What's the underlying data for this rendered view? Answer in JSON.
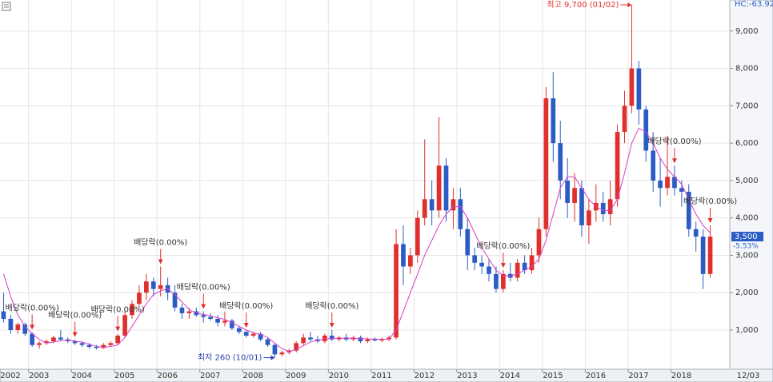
{
  "chart_data": {
    "type": "candlestick",
    "categories": [
      "2002",
      null,
      null,
      null,
      "2003",
      null,
      null,
      null,
      null,
      null,
      "2004",
      null,
      null,
      null,
      null,
      null,
      "2005",
      null,
      null,
      null,
      null,
      null,
      "2006",
      null,
      null,
      null,
      null,
      null,
      "2007",
      null,
      null,
      null,
      null,
      null,
      "2008",
      null,
      null,
      null,
      null,
      null,
      "2009",
      null,
      null,
      null,
      null,
      null,
      "2010",
      null,
      null,
      null,
      null,
      null,
      "2011",
      null,
      null,
      null,
      null,
      null,
      "2012",
      null,
      null,
      null,
      null,
      null,
      "2013",
      null,
      null,
      null,
      null,
      null,
      "2014",
      null,
      null,
      null,
      null,
      null,
      "2015",
      null,
      null,
      null,
      null,
      null,
      "2016",
      null,
      null,
      null,
      null,
      null,
      "2017",
      null,
      null,
      null,
      null,
      null,
      "2018",
      null,
      null,
      null,
      null,
      null
    ],
    "open": [
      1500,
      1300,
      1000,
      1150,
      900,
      600,
      650,
      700,
      800,
      750,
      700,
      650,
      600,
      550,
      520,
      600,
      650,
      850,
      1400,
      1700,
      2000,
      2300,
      2100,
      2200,
      2000,
      1600,
      1450,
      1500,
      1400,
      1350,
      1300,
      1200,
      1250,
      1050,
      950,
      850,
      900,
      750,
      600,
      350,
      400,
      450,
      650,
      800,
      750,
      700,
      850,
      750,
      800,
      750,
      800,
      700,
      750,
      720,
      750,
      800,
      3300,
      2700,
      3000,
      4000,
      4500,
      4200,
      5400,
      4200,
      4500,
      3700,
      3000,
      2800,
      2700,
      2500,
      2100,
      2500,
      2400,
      2800,
      2600,
      3000,
      3700,
      7200,
      6000,
      5000,
      4400,
      4800,
      3800,
      4200,
      4400,
      4100,
      4500,
      6300,
      7000,
      8000,
      6900,
      5800,
      5000,
      4800,
      5100,
      4800,
      4700,
      3700,
      3500,
      2500
    ],
    "high": [
      2000,
      1400,
      1200,
      1200,
      950,
      700,
      750,
      850,
      1000,
      800,
      750,
      700,
      650,
      600,
      650,
      700,
      900,
      1500,
      1800,
      2200,
      2500,
      2400,
      2700,
      2400,
      2200,
      1700,
      1600,
      1600,
      1500,
      1450,
      1400,
      1500,
      1300,
      1100,
      1000,
      950,
      950,
      800,
      650,
      450,
      500,
      700,
      900,
      950,
      850,
      900,
      1000,
      850,
      900,
      850,
      850,
      800,
      800,
      800,
      850,
      3700,
      3800,
      3200,
      4200,
      6100,
      5000,
      6700,
      5600,
      4800,
      4800,
      4000,
      3200,
      3000,
      2900,
      2700,
      2600,
      2800,
      2900,
      3000,
      3200,
      4000,
      7500,
      7900,
      6600,
      5600,
      5200,
      5000,
      4500,
      4900,
      4700,
      5000,
      6500,
      7400,
      9700,
      8200,
      7000,
      6300,
      5600,
      6200,
      5400,
      5000,
      4900,
      3900,
      3700,
      3800
    ],
    "low": [
      1200,
      900,
      900,
      850,
      550,
      500,
      600,
      650,
      700,
      650,
      600,
      550,
      500,
      480,
      500,
      550,
      600,
      800,
      1300,
      1600,
      1800,
      1900,
      1900,
      1800,
      1500,
      1300,
      1300,
      1350,
      1200,
      1250,
      1100,
      1100,
      1000,
      900,
      800,
      800,
      700,
      550,
      260,
      300,
      350,
      400,
      600,
      700,
      650,
      650,
      700,
      700,
      700,
      700,
      650,
      650,
      700,
      680,
      700,
      750,
      2200,
      2500,
      2800,
      3800,
      3800,
      4000,
      3900,
      3700,
      3500,
      2600,
      2600,
      2500,
      2300,
      2000,
      2000,
      2300,
      2300,
      2500,
      2500,
      2800,
      3500,
      5500,
      4500,
      4000,
      3900,
      3500,
      3300,
      3900,
      3900,
      3800,
      4300,
      6000,
      6800,
      6500,
      5500,
      4700,
      4300,
      4600,
      4600,
      4300,
      3500,
      3100,
      2100,
      2400
    ],
    "close": [
      1300,
      1000,
      1150,
      900,
      600,
      650,
      700,
      800,
      750,
      700,
      650,
      600,
      550,
      520,
      600,
      650,
      850,
      1400,
      1700,
      2000,
      2300,
      2100,
      2200,
      2000,
      1600,
      1450,
      1500,
      1400,
      1350,
      1300,
      1200,
      1250,
      1050,
      950,
      850,
      900,
      750,
      600,
      350,
      400,
      450,
      650,
      800,
      750,
      700,
      850,
      750,
      800,
      750,
      800,
      700,
      750,
      720,
      750,
      800,
      3300,
      2700,
      3000,
      4000,
      4500,
      4200,
      5400,
      4200,
      4500,
      3700,
      3000,
      2800,
      2700,
      2500,
      2100,
      2500,
      2400,
      2800,
      2600,
      3000,
      3700,
      7200,
      6000,
      5000,
      4400,
      4800,
      3800,
      4200,
      4400,
      4100,
      4500,
      6300,
      7000,
      8000,
      6900,
      5800,
      5000,
      4800,
      5100,
      4800,
      4700,
      3700,
      3500,
      2500,
      3500
    ],
    "up_color": "#e0302e",
    "down_color": "#2b5cc6",
    "ma": {
      "color": "#d63fc6",
      "values": [
        2500,
        1900,
        1400,
        1100,
        900,
        750,
        650,
        680,
        720,
        730,
        700,
        680,
        620,
        560,
        540,
        560,
        600,
        800,
        1100,
        1400,
        1700,
        1950,
        2050,
        2100,
        1950,
        1750,
        1550,
        1450,
        1420,
        1380,
        1330,
        1280,
        1200,
        1100,
        1000,
        930,
        880,
        800,
        650,
        500,
        430,
        480,
        580,
        680,
        730,
        760,
        780,
        780,
        780,
        780,
        770,
        760,
        760,
        750,
        760,
        1000,
        1500,
        2000,
        2500,
        3000,
        3400,
        3800,
        4100,
        4300,
        4300,
        4000,
        3600,
        3200,
        2900,
        2600,
        2450,
        2450,
        2500,
        2600,
        2700,
        2900,
        3400,
        4100,
        4800,
        5100,
        5100,
        4800,
        4500,
        4300,
        4200,
        4200,
        4500,
        5200,
        6000,
        6400,
        6300,
        6000,
        5600,
        5300,
        5100,
        4900,
        4500,
        4100,
        3800,
        3600
      ]
    },
    "ylim": [
      0,
      9830
    ],
    "yticks": [
      {
        "value": 1000,
        "label": "1,000"
      },
      {
        "value": 2000,
        "label": "2,000"
      },
      {
        "value": 3000,
        "label": "3,000"
      },
      {
        "value": 4000,
        "label": "4,000"
      },
      {
        "value": 5000,
        "label": "5,000"
      },
      {
        "value": 6000,
        "label": "6,000"
      },
      {
        "value": 7000,
        "label": "7,000"
      },
      {
        "value": 8000,
        "label": "8,000"
      },
      {
        "value": 9000,
        "label": "9,000"
      }
    ],
    "grid": true,
    "header_label": "HC:-63.92",
    "last_price": {
      "value": 3500,
      "label": "3,500"
    },
    "last_change": "-5.53%",
    "date_label": "12/03",
    "high_note": {
      "index": 88,
      "value": 9700,
      "text": "최고 9,700 (01/02)"
    },
    "low_note": {
      "index": 38,
      "value": 260,
      "text": "최저 260 (10/01)"
    },
    "annotations": [
      {
        "index": 4,
        "text": "배당락(0.00%)"
      },
      {
        "index": 10,
        "text": "배당락(0.00%)"
      },
      {
        "index": 16,
        "text": "배당락(0.00%)"
      },
      {
        "index": 22,
        "text": "배당락(0.00%)"
      },
      {
        "index": 28,
        "text": "배당락(0.00%)"
      },
      {
        "index": 34,
        "text": "배당락(0.00%)"
      },
      {
        "index": 46,
        "text": "배당락(0.00%)"
      },
      {
        "index": 70,
        "text": "배당락(0.00%)"
      },
      {
        "index": 94,
        "text": "배당락(0.00%)"
      },
      {
        "index": 99,
        "text": "배당락(0.00%)"
      }
    ]
  }
}
